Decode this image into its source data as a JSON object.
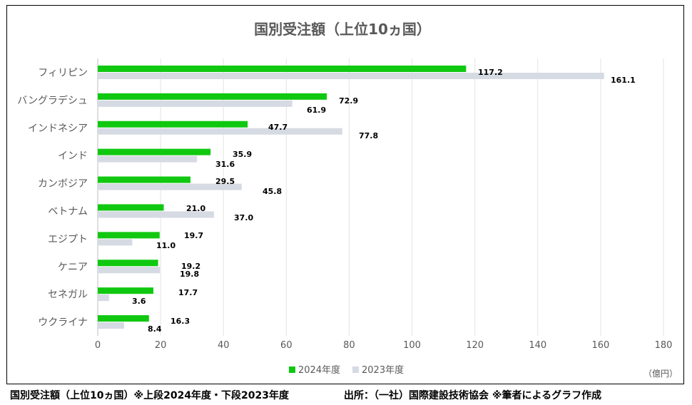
{
  "chart_data": {
    "type": "bar",
    "orientation": "horizontal",
    "title": "国別受注額（上位10ヵ国）",
    "unit_label": "（億円）",
    "categories": [
      "フィリピン",
      "バングラデシュ",
      "インドネシア",
      "インド",
      "カンボジア",
      "ベトナム",
      "エジプト",
      "ケニア",
      "セネガル",
      "ウクライナ"
    ],
    "series": [
      {
        "name": "2024年度",
        "color": "#10c810",
        "values": [
          117.2,
          72.9,
          47.7,
          35.9,
          29.5,
          21.0,
          19.7,
          19.2,
          17.7,
          16.3
        ]
      },
      {
        "name": "2023年度",
        "color": "#d6dae3",
        "values": [
          161.1,
          61.9,
          77.8,
          31.6,
          45.8,
          37.0,
          11.0,
          19.8,
          3.6,
          8.4
        ]
      }
    ],
    "data_labels": [
      [
        "117.2",
        "72.9",
        "47.7",
        "35.9",
        "29.5",
        "21.0",
        "19.7",
        "19.2",
        "17.7",
        "16.3"
      ],
      [
        "161.1",
        "61.9",
        "77.8",
        "31.6",
        "45.8",
        "37.0",
        "11.0",
        "19.8",
        "3.6",
        "8.4"
      ]
    ],
    "xlim": [
      0,
      180
    ],
    "x_ticks": [
      0,
      20,
      40,
      60,
      80,
      100,
      120,
      140,
      160,
      180
    ],
    "grid": "vertical",
    "legend_position": "bottom"
  },
  "caption": {
    "left": "国別受注額（上位10ヵ国）※上段2024年度・下段2023年度",
    "right": "出所：（一社）国際建設技術協会 ※筆者によるグラフ作成"
  }
}
